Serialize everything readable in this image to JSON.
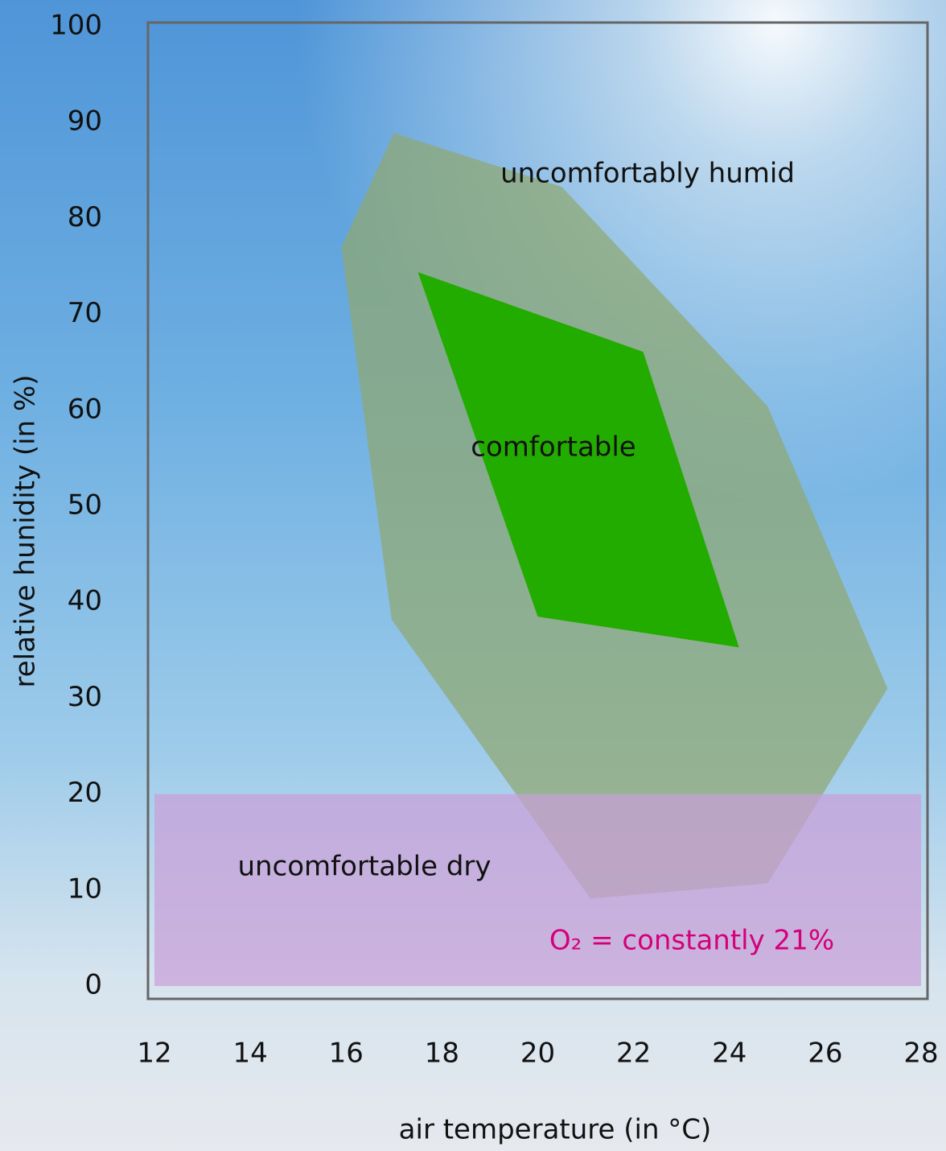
{
  "chart_data": {
    "type": "region",
    "x_label": "air temperature (in °C)",
    "y_label": "relative hunidity (in %)",
    "xlim": [
      12,
      28
    ],
    "ylim": [
      0,
      100
    ],
    "xticks": [
      12,
      14,
      16,
      18,
      20,
      22,
      24,
      26,
      28
    ],
    "yticks": [
      0,
      10,
      20,
      30,
      40,
      50,
      60,
      70,
      80,
      90,
      100
    ],
    "regions": [
      {
        "name": "uncomfortably humid",
        "color": "#8fa870",
        "x": [
          17.0,
          20.5,
          24.8,
          27.3,
          24.8,
          21.1,
          16.95,
          15.9
        ],
        "y": [
          88.9,
          83.3,
          60.4,
          31.0,
          10.7,
          9.1,
          38.2,
          77.0
        ]
      },
      {
        "name": "comfortable",
        "color": "#22ac00",
        "x": [
          17.5,
          22.2,
          24.2,
          20.0
        ],
        "y": [
          74.4,
          66.1,
          35.3,
          38.5
        ]
      },
      {
        "name": "uncomfortable dry",
        "color": "#c9a0d8",
        "x": [
          12,
          28,
          28,
          12
        ],
        "y": [
          0,
          0,
          20,
          20
        ]
      }
    ],
    "annotation": {
      "text": "O₂ = constantly 21%",
      "color": "#d4007a"
    }
  }
}
